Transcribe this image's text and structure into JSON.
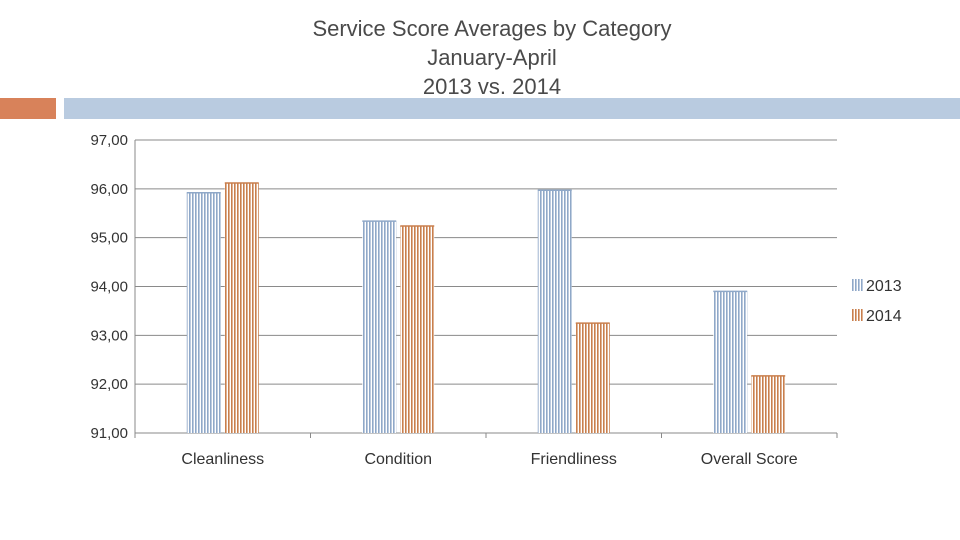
{
  "title_lines": [
    "Service Score Averages by Category",
    "January-April",
    "2013  vs. 2014"
  ],
  "colors": {
    "accent_orange": "#d8825a",
    "accent_blue": "#b9cbe0",
    "series_2013": "#8fa8c8",
    "series_2014": "#c97f4d"
  },
  "chart_data": {
    "type": "bar",
    "title": "Service Score Averages by Category January-April 2013  vs. 2014",
    "categories": [
      "Cleanliness",
      "Condition",
      "Friendliness",
      "Overall Score"
    ],
    "series": [
      {
        "name": "2013",
        "values": [
          95.92,
          95.34,
          95.97,
          93.9
        ]
      },
      {
        "name": "2014",
        "values": [
          96.12,
          95.24,
          93.25,
          92.17
        ]
      }
    ],
    "ylim": [
      91,
      97
    ],
    "yticks": [
      "91,00",
      "92,00",
      "93,00",
      "94,00",
      "95,00",
      "96,00",
      "97,00"
    ],
    "grid": true,
    "legend": "right",
    "xlabel": "",
    "ylabel": ""
  }
}
